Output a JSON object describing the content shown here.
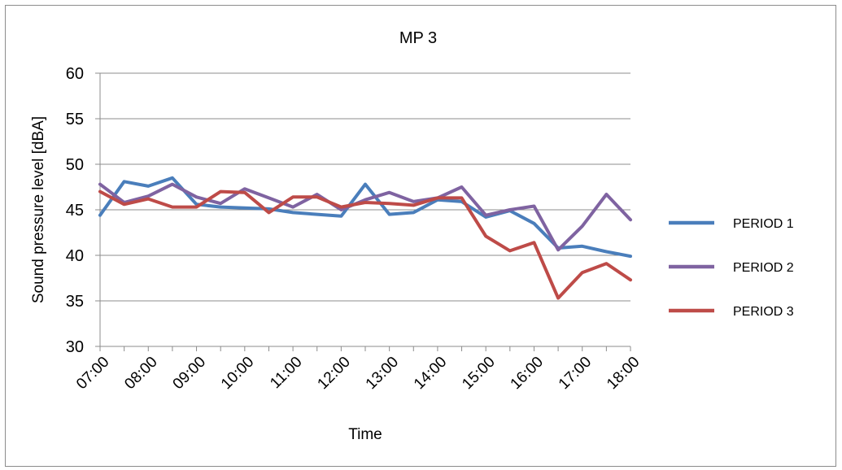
{
  "chart_data": {
    "type": "line",
    "title": "MP 3",
    "xlabel": "Time",
    "ylabel": "Sound pressure level  [dBA]",
    "ylim": [
      30,
      60
    ],
    "yticks": [
      30,
      35,
      40,
      45,
      50,
      55,
      60
    ],
    "grid": "horizontal",
    "legend_position": "right",
    "x_tick_labels": [
      "07:00",
      "08:00",
      "09:00",
      "10:00",
      "11:00",
      "12:00",
      "13:00",
      "14:00",
      "15:00",
      "16:00",
      "17:00",
      "18:00"
    ],
    "x": [
      "07:00",
      "07:30",
      "08:00",
      "08:30",
      "09:00",
      "09:30",
      "10:00",
      "10:30",
      "11:00",
      "11:30",
      "12:00",
      "12:30",
      "13:00",
      "13:30",
      "14:00",
      "14:30",
      "15:00",
      "15:30",
      "16:00",
      "16:30",
      "17:00",
      "17:30",
      "18:00"
    ],
    "series": [
      {
        "name": "PERIOD 1",
        "color": "#4a7ebb",
        "values": [
          44.4,
          48.1,
          47.6,
          48.5,
          45.6,
          45.3,
          45.2,
          45.1,
          44.7,
          44.5,
          44.3,
          47.8,
          44.5,
          44.7,
          46.1,
          45.9,
          44.2,
          44.9,
          43.5,
          40.8,
          41.0,
          40.4,
          39.9
        ]
      },
      {
        "name": "PERIOD 2",
        "color": "#7f63a1",
        "values": [
          47.8,
          45.8,
          46.5,
          47.8,
          46.4,
          45.7,
          47.3,
          46.3,
          45.3,
          46.7,
          45.0,
          46.1,
          46.9,
          45.9,
          46.3,
          47.5,
          44.4,
          45.0,
          45.4,
          40.6,
          43.2,
          46.7,
          43.9
        ]
      },
      {
        "name": "PERIOD 3",
        "color": "#be4b48",
        "values": [
          47.0,
          45.6,
          46.2,
          45.3,
          45.3,
          47.0,
          46.9,
          44.7,
          46.4,
          46.4,
          45.3,
          45.8,
          45.7,
          45.5,
          46.3,
          46.3,
          42.1,
          40.5,
          41.4,
          35.3,
          38.1,
          39.1,
          37.3
        ]
      }
    ]
  }
}
